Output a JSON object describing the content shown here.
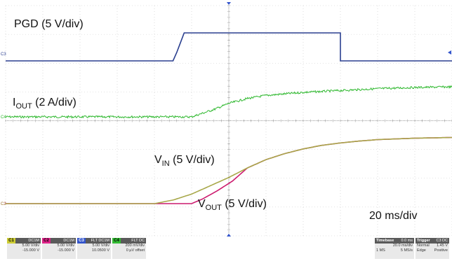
{
  "chart_data": {
    "type": "line",
    "title": "",
    "grid": true,
    "traces": [
      {
        "name": "PGD",
        "label": "PGD (5 V/div)",
        "color": "#2a3f8f",
        "channel_marker": "C3",
        "points": [
          [
            0,
            0
          ],
          [
            4.5,
            0
          ],
          [
            4.6,
            0.3
          ],
          [
            4.8,
            1.0
          ],
          [
            9,
            1.0
          ],
          [
            9,
            0
          ],
          [
            12,
            0
          ]
        ]
      },
      {
        "name": "IOUT",
        "label_main": "I",
        "label_sub": "OUT",
        "label_tail": " (2 A/div)",
        "color": "#2eb82e",
        "channel_marker": "C4",
        "points": [
          [
            0,
            0
          ],
          [
            5,
            0
          ],
          [
            5.2,
            0.2
          ],
          [
            5.6,
            0.6
          ],
          [
            6,
            1.1
          ],
          [
            6.5,
            1.5
          ],
          [
            7,
            1.75
          ],
          [
            8,
            2.0
          ],
          [
            9,
            2.15
          ],
          [
            10,
            2.3
          ],
          [
            11,
            2.4
          ],
          [
            12,
            2.45
          ]
        ]
      },
      {
        "name": "VIN",
        "label_main": "V",
        "label_sub": "IN",
        "label_tail": " (5 V/div)",
        "color": "#a8a84a",
        "channel_marker": "C1",
        "points": [
          [
            0,
            0
          ],
          [
            4,
            0
          ],
          [
            4.5,
            0.15
          ],
          [
            5,
            0.4
          ],
          [
            5.5,
            0.75
          ],
          [
            6,
            1.1
          ],
          [
            6.5,
            1.5
          ],
          [
            7,
            1.85
          ],
          [
            7.5,
            2.1
          ],
          [
            8,
            2.3
          ],
          [
            8.5,
            2.45
          ],
          [
            9,
            2.55
          ],
          [
            9.5,
            2.63
          ],
          [
            10,
            2.69
          ],
          [
            11,
            2.75
          ],
          [
            12,
            2.78
          ]
        ]
      },
      {
        "name": "VOUT",
        "label_main": "V",
        "label_sub": "OUT",
        "label_tail": " (5 V/div)",
        "color": "#cc1a6e",
        "channel_marker": "C2",
        "points": [
          [
            0,
            0
          ],
          [
            4,
            0
          ],
          [
            5,
            0
          ],
          [
            5.3,
            0.2
          ],
          [
            5.7,
            0.55
          ],
          [
            6.1,
            0.95
          ],
          [
            6.5,
            1.5
          ],
          [
            7,
            1.85
          ],
          [
            7.5,
            2.1
          ],
          [
            8,
            2.3
          ],
          [
            8.5,
            2.45
          ],
          [
            9,
            2.55
          ],
          [
            9.5,
            2.63
          ],
          [
            10,
            2.69
          ],
          [
            11,
            2.75
          ],
          [
            12,
            2.78
          ]
        ]
      }
    ],
    "timebase_label": "20 ms/div"
  },
  "status_bar": {
    "channels": [
      {
        "tag": "C1",
        "color": "#cccc33",
        "head": "DC1M",
        "lines": [
          "5.00 V/div",
          "-15.000 V"
        ]
      },
      {
        "tag": "C2",
        "color": "#dd2288",
        "head": "DC1M",
        "lines": [
          "5.00 V/div",
          "-15.000 V"
        ]
      },
      {
        "tag": "C3",
        "color": "#3355cc",
        "head": "FLT DC1M",
        "lines": [
          "5.00 V/div",
          "10.0500 V"
        ]
      },
      {
        "tag": "C4",
        "color": "#33bb33",
        "head": "FLT DC",
        "lines": [
          "200 mV/div",
          "0 µV offset"
        ]
      }
    ],
    "timebase": {
      "title": "Timebase",
      "value": "0.0 ms",
      "rows": [
        [
          "",
          "20.0 ms/div"
        ],
        [
          "1 MS",
          "5 MS/s"
        ]
      ]
    },
    "trigger": {
      "title": "Trigger",
      "value": "C3 DC",
      "rows": [
        [
          "Normal",
          "1.45 V"
        ],
        [
          "Edge",
          "Positive"
        ]
      ]
    }
  }
}
